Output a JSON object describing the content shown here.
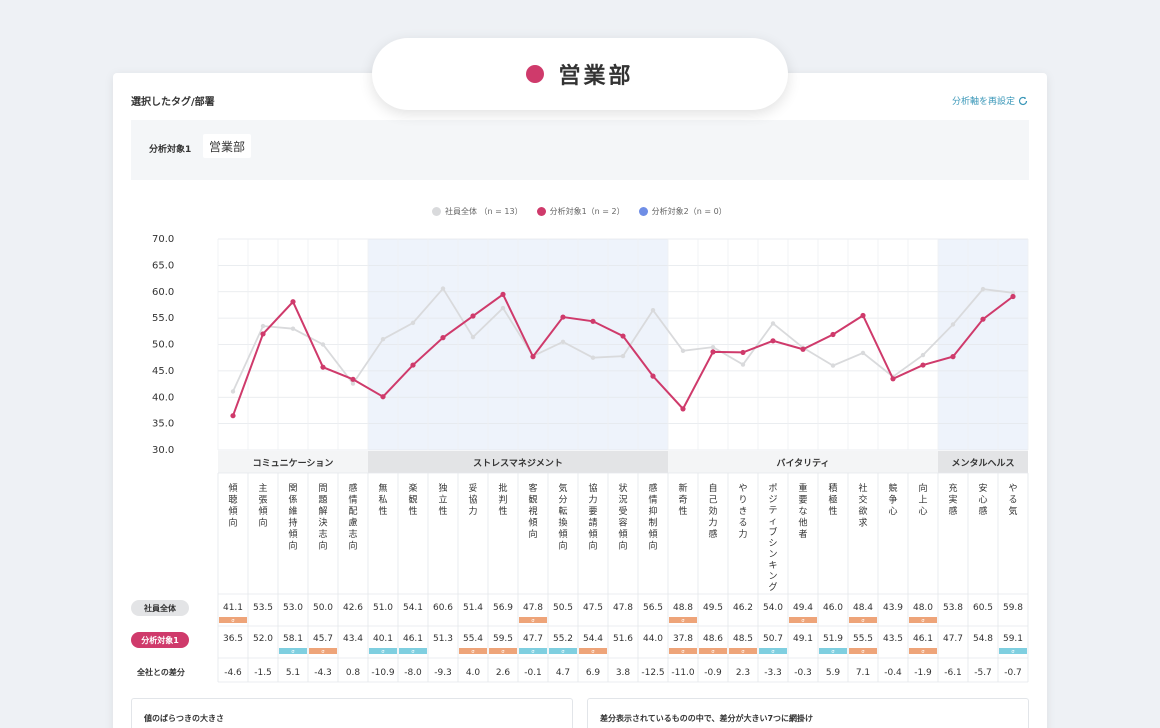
{
  "header": {
    "title": "営業部"
  },
  "panel": {
    "title": "選択したタグ/部署",
    "reset_label": "分析軸を再設定",
    "target_label": "分析対象1",
    "target_value": "営業部"
  },
  "legend": [
    {
      "label": "社員全体 （n = 13）",
      "color": "#d9dadc"
    },
    {
      "label": "分析対象1（n = 2）",
      "color": "#cf3a6b"
    },
    {
      "label": "分析対象2（n = 0）",
      "color": "#6f8ee6"
    }
  ],
  "rows": {
    "all_label": "社員全体",
    "target_label": "分析対象1",
    "diff_label": "全社との差分"
  },
  "colors": {
    "all": "#d9dadc",
    "target": "#cf3a6b",
    "orange": "#eea479",
    "teal": "#7fcfe0",
    "band": "#eef3fb"
  },
  "chart_data": {
    "type": "line",
    "ylim": [
      30,
      70
    ],
    "yticks": [
      "70.0",
      "65.0",
      "60.0",
      "55.0",
      "50.0",
      "45.0",
      "40.0",
      "35.0",
      "30.0"
    ],
    "groups": [
      {
        "name": "コミュニケーション",
        "count": 5
      },
      {
        "name": "ストレスマネジメント",
        "count": 10
      },
      {
        "name": "バイタリティ",
        "count": 9
      },
      {
        "name": "メンタルヘルス",
        "count": 3
      }
    ],
    "categories": [
      "傾聴傾向",
      "主張傾向",
      "関係維持傾向",
      "問題解決志向",
      "感情配慮志向",
      "無私性",
      "楽観性",
      "独立性",
      "妥協力",
      "批判性",
      "客観視傾向",
      "気分転換傾向",
      "協力要請傾向",
      "状況受容傾向",
      "感情抑制傾向",
      "新奇性",
      "自己効力感",
      "やりきる力",
      "ポジティブシンキング",
      "重要な他者",
      "積極性",
      "社交欲求",
      "競争心",
      "向上心",
      "充実感",
      "安心感",
      "やる気"
    ],
    "series": [
      {
        "name": "社員全体",
        "values": [
          41.1,
          53.5,
          53.0,
          50.0,
          42.6,
          51.0,
          54.1,
          60.6,
          51.4,
          56.9,
          47.8,
          50.5,
          47.5,
          47.8,
          56.5,
          48.8,
          49.5,
          46.2,
          54.0,
          49.4,
          46.0,
          48.4,
          43.9,
          48.0,
          53.8,
          60.5,
          59.8
        ]
      },
      {
        "name": "分析対象1",
        "values": [
          36.5,
          52.0,
          58.1,
          45.7,
          43.4,
          40.1,
          46.1,
          51.3,
          55.4,
          59.5,
          47.7,
          55.2,
          54.4,
          51.6,
          44.0,
          37.8,
          48.6,
          48.5,
          50.7,
          49.1,
          51.9,
          55.5,
          43.5,
          46.1,
          47.7,
          54.8,
          59.1
        ]
      }
    ],
    "all_marks": [
      "o",
      "",
      "",
      "",
      "",
      "",
      "",
      "",
      "",
      "",
      "o",
      "",
      "",
      "",
      "",
      "o",
      "",
      "",
      "",
      "o",
      "",
      "o",
      "",
      "o",
      "",
      "",
      ""
    ],
    "target_marks": [
      "",
      "",
      "t",
      "o",
      "",
      "t",
      "t",
      "",
      "o",
      "o",
      "t",
      "t",
      "o",
      "",
      "",
      "o",
      "o",
      "o",
      "t",
      "",
      "t",
      "o",
      "",
      "o",
      "",
      "",
      "t"
    ],
    "mark_glyph": "σ",
    "diff": [
      "-4.6",
      "-1.5",
      "5.1",
      "-4.3",
      "0.8",
      "-10.9",
      "-8.0",
      "-9.3",
      "4.0",
      "2.6",
      "-0.1",
      "4.7",
      "6.9",
      "3.8",
      "-12.5",
      "-11.0",
      "-0.9",
      "2.3",
      "-3.3",
      "-0.3",
      "5.9",
      "7.1",
      "-0.4",
      "-1.9",
      "-6.1",
      "-5.7",
      "-0.7"
    ]
  },
  "bottom": {
    "left_title": "値のばらつきの大きさ",
    "right_title": "差分表示されているものの中で、差分が大きい7つに網掛け"
  }
}
